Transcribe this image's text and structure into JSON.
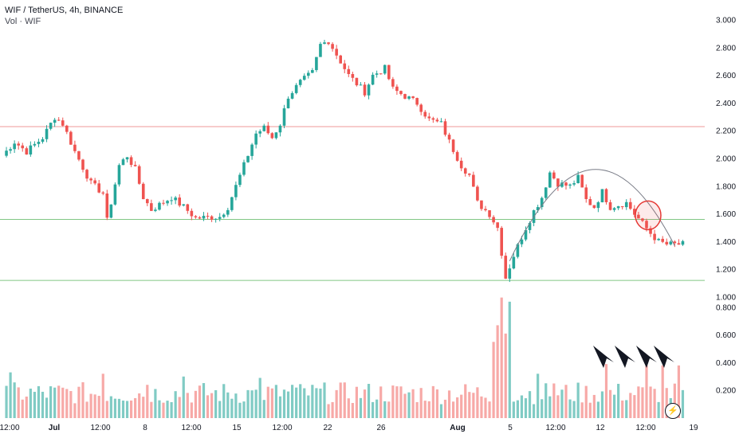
{
  "header": {
    "symbol_line": "WIF / TetherUS, 4h, BINANCE",
    "volume_line": "Vol · WIF"
  },
  "colors": {
    "up": "#26a69a",
    "down": "#ef5350",
    "up_volume": "#80cbc4",
    "down_volume": "#f7a9a7",
    "resistance_line": "#ef9a9a",
    "support_line": "#81c784",
    "arc": "#787b86",
    "highlight_circle": "#e53935",
    "arrow": "#131722"
  },
  "icons": [
    "lightning-icon",
    "down-arrow-icon"
  ],
  "chart_data": {
    "type": "candlestick",
    "price_axis": {
      "ticks": [
        "3.000",
        "2.800",
        "2.600",
        "2.400",
        "2.200",
        "2.000",
        "1.800",
        "1.600",
        "1.400",
        "1.200",
        "1.000"
      ],
      "range": [
        1.0,
        3.0
      ]
    },
    "volume_axis": {
      "ticks": [
        "0.800",
        "0.600",
        "0.400",
        "0.200"
      ]
    },
    "x_axis": {
      "ticks": [
        "12:00",
        "Jul",
        "12:00",
        "8",
        "12:00",
        "15",
        "12:00",
        "22",
        "26",
        "Aug",
        "5",
        "12:00",
        "12",
        "12:00",
        "19"
      ]
    },
    "horizontal_levels": [
      {
        "price": 2.23,
        "color": "resistance"
      },
      {
        "price": 1.56,
        "color": "support"
      },
      {
        "price": 1.12,
        "color": "support"
      }
    ],
    "annotations": {
      "arc_path": [
        [
          1.26,
          0.0
        ],
        [
          1.92,
          0.5
        ],
        [
          1.37,
          1.0
        ]
      ],
      "circle_center_price": 1.59,
      "arrow_count": 4
    },
    "waypoints": [
      [
        0,
        2.02
      ],
      [
        3,
        2.12
      ],
      [
        6,
        2.05
      ],
      [
        10,
        2.15
      ],
      [
        13,
        2.3
      ],
      [
        15,
        2.25
      ],
      [
        18,
        2.05
      ],
      [
        22,
        1.82
      ],
      [
        25,
        1.75
      ],
      [
        26,
        1.55
      ],
      [
        29,
        1.95
      ],
      [
        31,
        2.02
      ],
      [
        33,
        1.92
      ],
      [
        35,
        1.72
      ],
      [
        37,
        1.63
      ],
      [
        42,
        1.72
      ],
      [
        45,
        1.65
      ],
      [
        48,
        1.57
      ],
      [
        54,
        1.58
      ],
      [
        56,
        1.65
      ],
      [
        60,
        1.95
      ],
      [
        63,
        2.18
      ],
      [
        65,
        2.22
      ],
      [
        67,
        2.15
      ],
      [
        69,
        2.25
      ],
      [
        71,
        2.45
      ],
      [
        74,
        2.55
      ],
      [
        77,
        2.62
      ],
      [
        79,
        2.82
      ],
      [
        81,
        2.85
      ],
      [
        83,
        2.75
      ],
      [
        86,
        2.6
      ],
      [
        90,
        2.48
      ],
      [
        92,
        2.6
      ],
      [
        95,
        2.65
      ],
      [
        97,
        2.5
      ],
      [
        100,
        2.45
      ],
      [
        103,
        2.4
      ],
      [
        106,
        2.28
      ],
      [
        109,
        2.25
      ],
      [
        111,
        2.12
      ],
      [
        114,
        1.95
      ],
      [
        116,
        1.88
      ],
      [
        118,
        1.68
      ],
      [
        121,
        1.6
      ],
      [
        123,
        1.5
      ],
      [
        124,
        1.32
      ],
      [
        125,
        1.14
      ],
      [
        127,
        1.3
      ],
      [
        130,
        1.5
      ],
      [
        132,
        1.62
      ],
      [
        134,
        1.72
      ],
      [
        136,
        1.9
      ],
      [
        138,
        1.82
      ],
      [
        141,
        1.8
      ],
      [
        143,
        1.86
      ],
      [
        145,
        1.7
      ],
      [
        147,
        1.65
      ],
      [
        149,
        1.76
      ],
      [
        151,
        1.65
      ],
      [
        155,
        1.68
      ],
      [
        157,
        1.6
      ],
      [
        159,
        1.53
      ],
      [
        161,
        1.46
      ],
      [
        163,
        1.4
      ],
      [
        165,
        1.38
      ]
    ],
    "volume_spikes": [
      [
        2,
        0.33
      ],
      [
        25,
        0.32
      ],
      [
        36,
        0.24
      ],
      [
        45,
        0.3
      ],
      [
        62,
        0.2
      ],
      [
        64,
        0.29
      ],
      [
        72,
        0.24
      ],
      [
        122,
        0.55
      ],
      [
        123,
        0.67
      ],
      [
        124,
        0.87
      ],
      [
        125,
        0.61
      ],
      [
        126,
        0.84
      ],
      [
        133,
        0.32
      ],
      [
        137,
        0.25
      ],
      [
        150,
        0.39
      ],
      [
        160,
        0.38
      ],
      [
        164,
        0.38
      ],
      [
        168,
        0.38
      ]
    ],
    "volume_base": 0.1
  }
}
